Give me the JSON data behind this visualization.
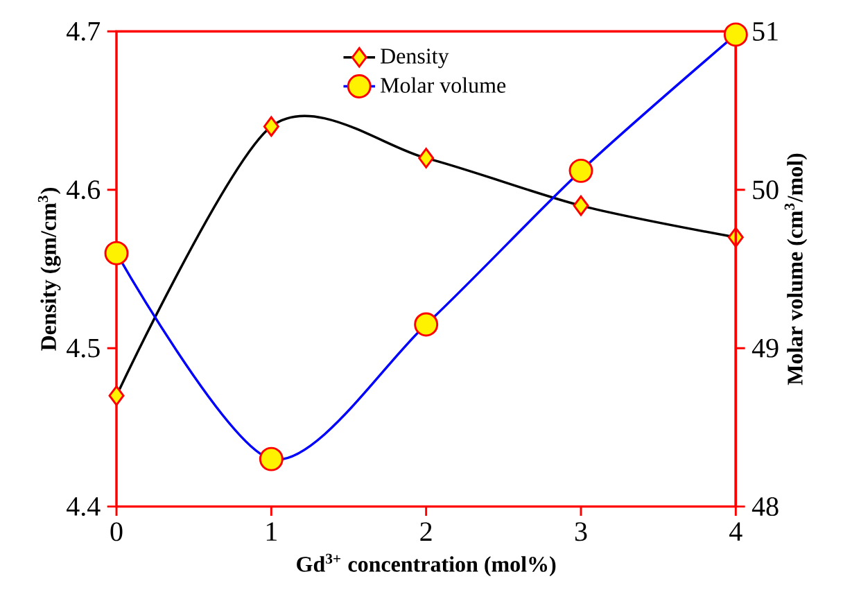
{
  "chart_data": {
    "type": "line",
    "xlabel": "Gd$^{3+}$ concentration (mol%)",
    "ylabel": "Density (gm/cm$^{3}$)",
    "y2label": "Molar volume (cm$^{3}$/mol)",
    "x": [
      0,
      1,
      2,
      3,
      4
    ],
    "xlim": [
      0,
      4
    ],
    "xticks": [
      0,
      1,
      2,
      3,
      4
    ],
    "ylim": [
      4.4,
      4.7
    ],
    "yticks": [
      4.4,
      4.5,
      4.6,
      4.7
    ],
    "y2lim": [
      48,
      51
    ],
    "y2ticks": [
      48,
      49,
      50,
      51
    ],
    "legend": "top",
    "series": [
      {
        "name": "Density",
        "color": "#000000",
        "marker": "diamond",
        "values": [
          4.47,
          4.64,
          4.62,
          4.59,
          4.57
        ]
      },
      {
        "name": "Molar volume",
        "color": "#0000ff",
        "marker": "circle",
        "axis": "y2",
        "values": [
          49.6,
          48.3,
          49.15,
          50.12,
          50.98
        ]
      }
    ]
  }
}
